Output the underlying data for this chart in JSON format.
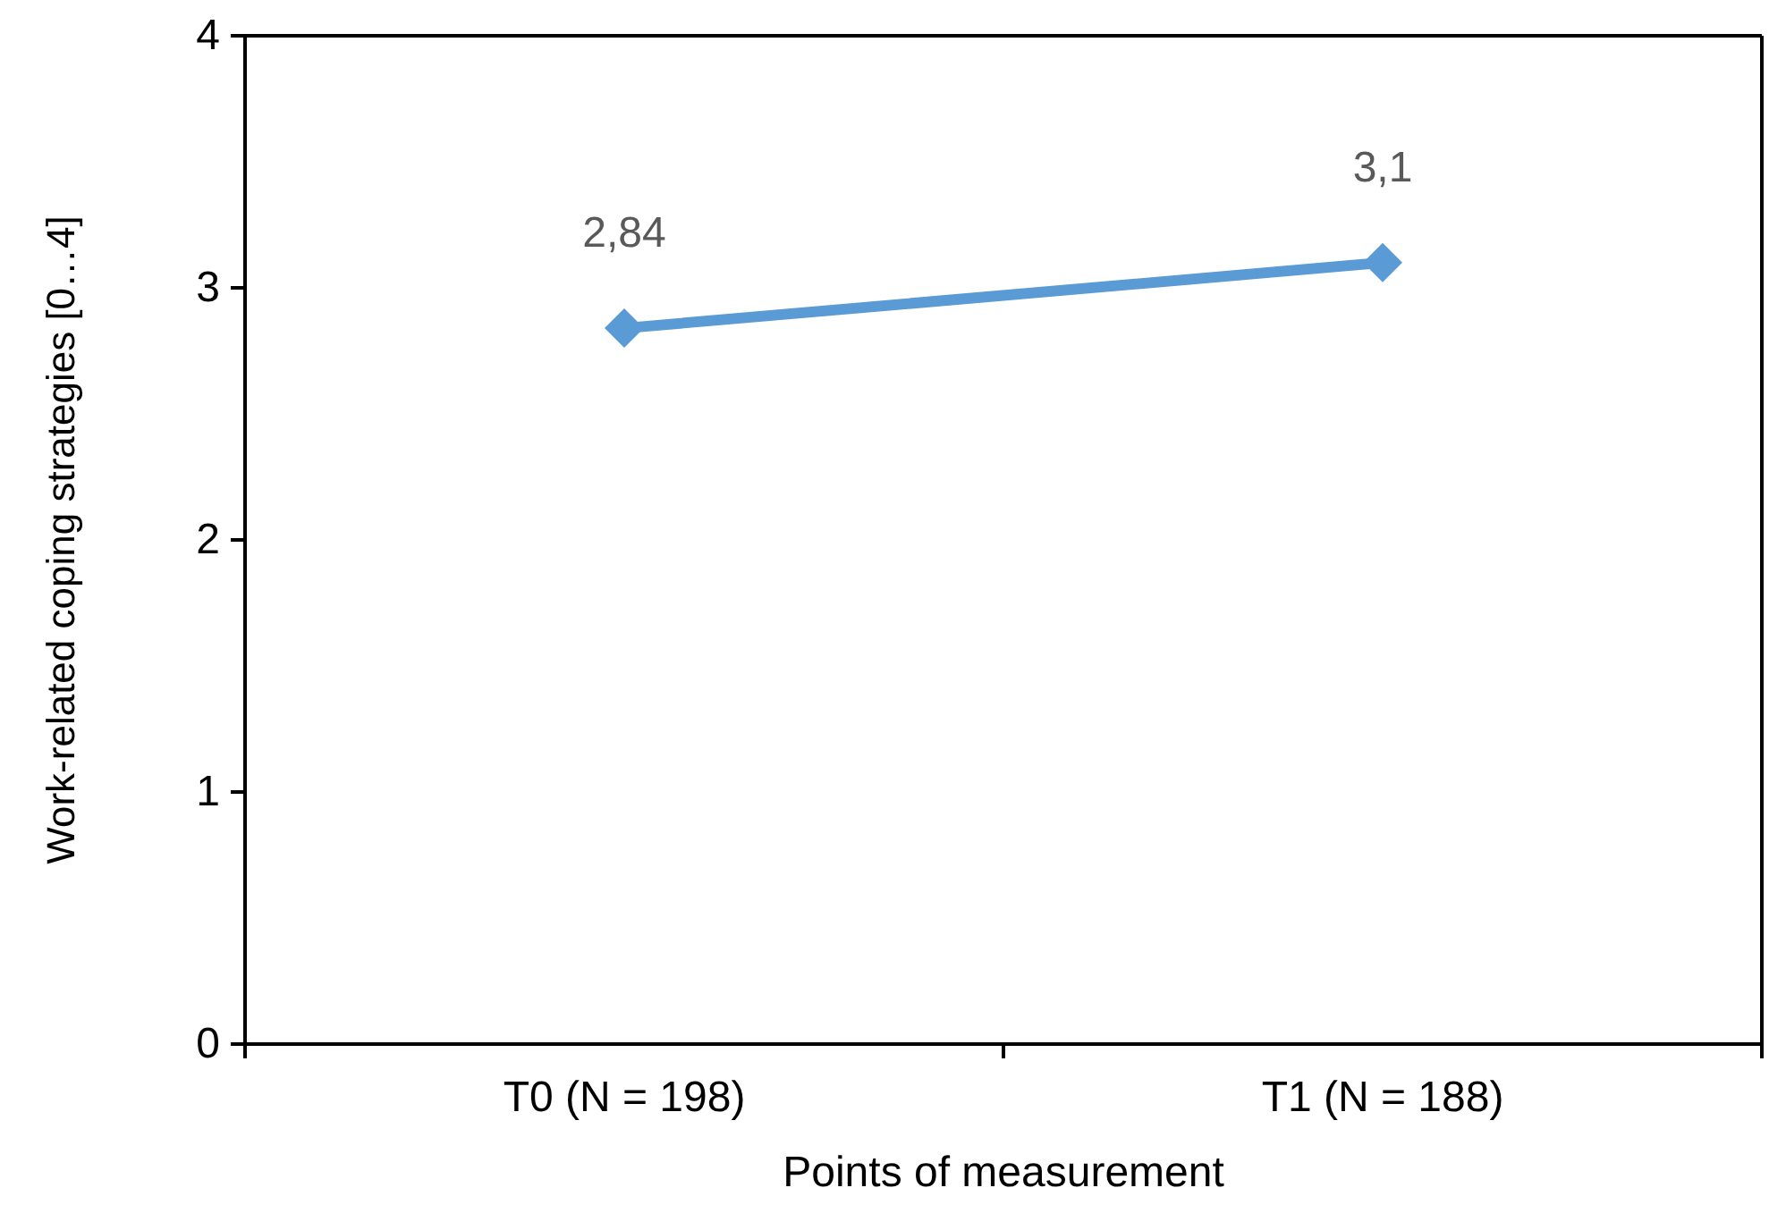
{
  "chart_data": {
    "type": "line",
    "xlabel": "Points of measurement",
    "ylabel": "Work-related coping strategies [0…4]",
    "categories": [
      "T0 (N = 198)",
      "T1 (N = 188)"
    ],
    "series": [
      {
        "color": "#5b9bd5",
        "values": [
          2.84,
          3.1
        ],
        "value_labels": [
          "2,84",
          "3,1"
        ]
      }
    ],
    "ylim": [
      0,
      4
    ],
    "yticks": [
      0,
      1,
      2,
      3,
      4
    ],
    "grid": false,
    "marker": "diamond",
    "line_style": "solid"
  }
}
